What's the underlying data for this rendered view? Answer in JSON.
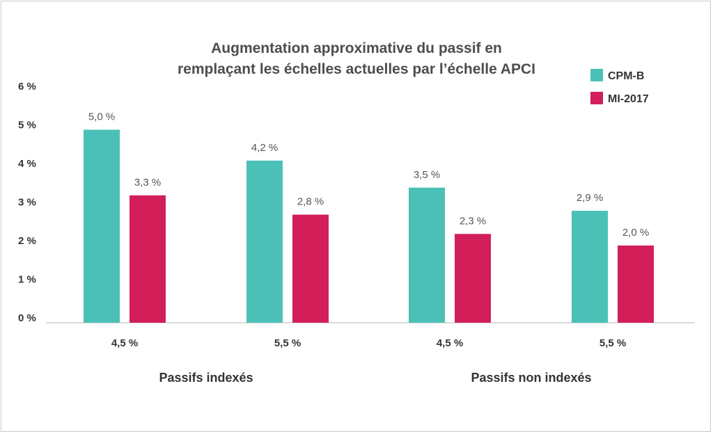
{
  "chart_data": {
    "type": "bar",
    "title_lines": [
      "Augmentation approximative du passif en",
      "remplaçant les échelles actuelles par l’échelle APCI"
    ],
    "categories": [
      "4,5 %",
      "5,5 %",
      "4,5 %",
      "5,5 %"
    ],
    "groups": [
      {
        "label": "Passifs indexés",
        "span": [
          0,
          1
        ]
      },
      {
        "label": "Passifs non indexés",
        "span": [
          2,
          3
        ]
      }
    ],
    "series": [
      {
        "name": "CPM-B",
        "color": "#4bc0b6",
        "values": [
          5.0,
          4.2,
          3.5,
          2.9
        ],
        "labels": [
          "5,0 %",
          "4,2 %",
          "3,5 %",
          "2,9 %"
        ]
      },
      {
        "name": "MI-2017",
        "color": "#d21f5a",
        "values": [
          3.3,
          2.8,
          2.3,
          2.0
        ],
        "labels": [
          "3,3 %",
          "2,8 %",
          "2,3 %",
          "2,0 %"
        ]
      }
    ],
    "yticks": [
      "0 %",
      "1 %",
      "2 %",
      "3 %",
      "4 %",
      "5 %",
      "6 %"
    ],
    "ylim": [
      0,
      6
    ],
    "grid": false,
    "legend_position": "top-right"
  }
}
